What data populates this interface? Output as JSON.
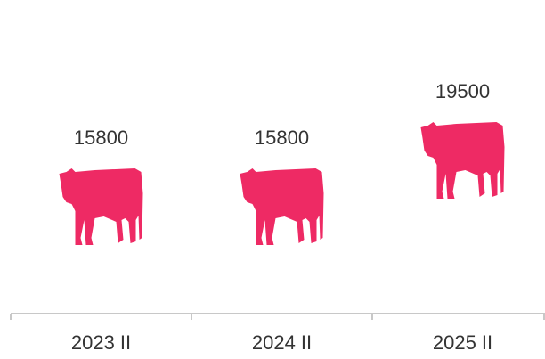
{
  "chart_data": {
    "type": "pictorial",
    "categories": [
      "2023 II",
      "2024 II",
      "2025 II"
    ],
    "values": [
      15800,
      15800,
      19500
    ],
    "color": "#ee2a64"
  }
}
